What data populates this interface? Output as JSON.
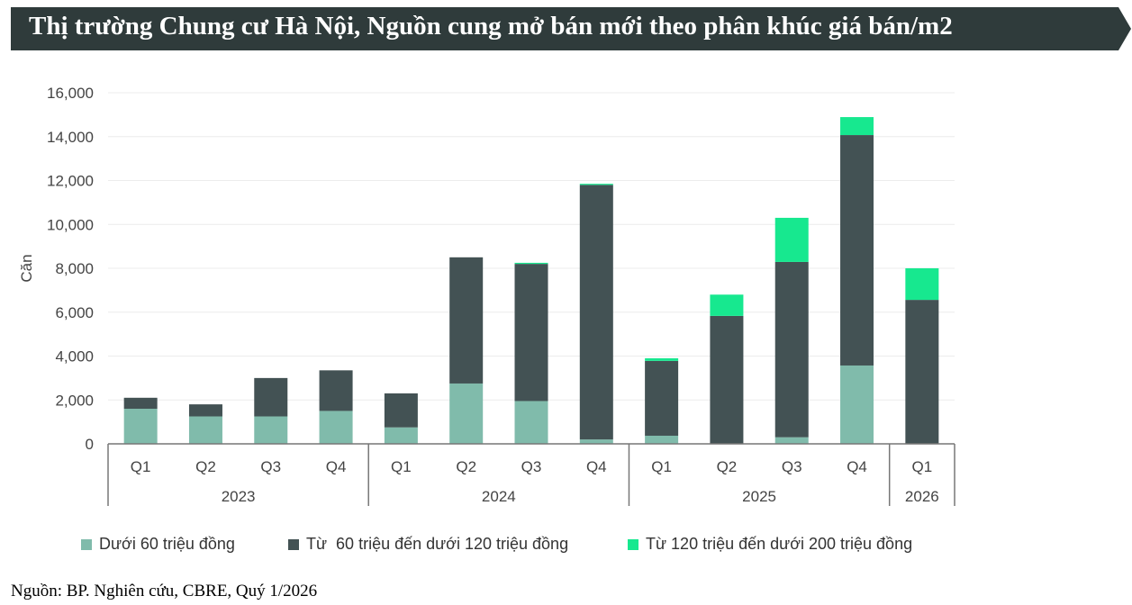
{
  "title": "Thị trường Chung cư Hà Nội, Nguồn cung mở bán mới theo phân khúc giá bán/m2",
  "source": "Nguồn: BP. Nghiên cứu, CBRE, Quý 1/2026",
  "colors": {
    "banner": "#2f3b3b",
    "s1": "#80bbab",
    "s2": "#435254",
    "s3": "#17e88f"
  },
  "chart_data": {
    "type": "bar",
    "stacked": true,
    "ylabel": "Căn",
    "ylim": [
      0,
      16000
    ],
    "yticks": [
      "0",
      "2,000",
      "4,000",
      "6,000",
      "8,000",
      "10,000",
      "12,000",
      "14,000",
      "16,000"
    ],
    "grid": true,
    "legend_placement": "bottom",
    "categories": [
      "Q1",
      "Q2",
      "Q3",
      "Q4",
      "Q1",
      "Q2",
      "Q3",
      "Q4",
      "Q1",
      "Q2",
      "Q3",
      "Q4",
      "Q1"
    ],
    "groups": [
      {
        "label": "2023",
        "count": 4
      },
      {
        "label": "2024",
        "count": 4
      },
      {
        "label": "2025",
        "count": 4
      },
      {
        "label": "2026",
        "count": 1
      }
    ],
    "series": [
      {
        "name": "Dưới 60 triệu đồng",
        "values": [
          1600,
          1250,
          1250,
          1500,
          750,
          2750,
          1950,
          200,
          370,
          0,
          300,
          3570,
          0
        ]
      },
      {
        "name": "Từ  60 triệu đến dưới 120 triệu đồng",
        "values": [
          500,
          550,
          1750,
          1850,
          1550,
          5750,
          6250,
          11600,
          3410,
          5830,
          7990,
          10500,
          6560
        ]
      },
      {
        "name": "Từ 120 triệu đến dưới 200 triệu đồng",
        "values": [
          0,
          0,
          0,
          0,
          0,
          0,
          50,
          50,
          120,
          970,
          2010,
          820,
          1440
        ]
      }
    ]
  }
}
